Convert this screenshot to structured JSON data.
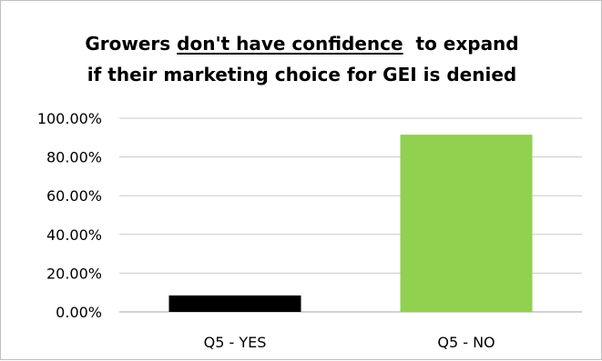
{
  "chart_data": {
    "type": "bar",
    "title_line1_before": "Growers ",
    "title_line1_underlined": "don't have confidence",
    "title_line1_after": "  to expand",
    "title_line2": "if their marketing choice for GEI is denied",
    "categories": [
      "Q5 - YES",
      "Q5 - NO"
    ],
    "values": [
      8.5,
      91.5
    ],
    "bar_colors": [
      "#000000",
      "#92d050"
    ],
    "ylim": [
      0,
      100
    ],
    "y_ticks": [
      "0.00%",
      "20.00%",
      "40.00%",
      "60.00%",
      "80.00%",
      "100.00%"
    ],
    "y_tick_values": [
      0,
      20,
      40,
      60,
      80,
      100
    ],
    "xlabel": "",
    "ylabel": "",
    "grid": true,
    "legend": "none"
  }
}
